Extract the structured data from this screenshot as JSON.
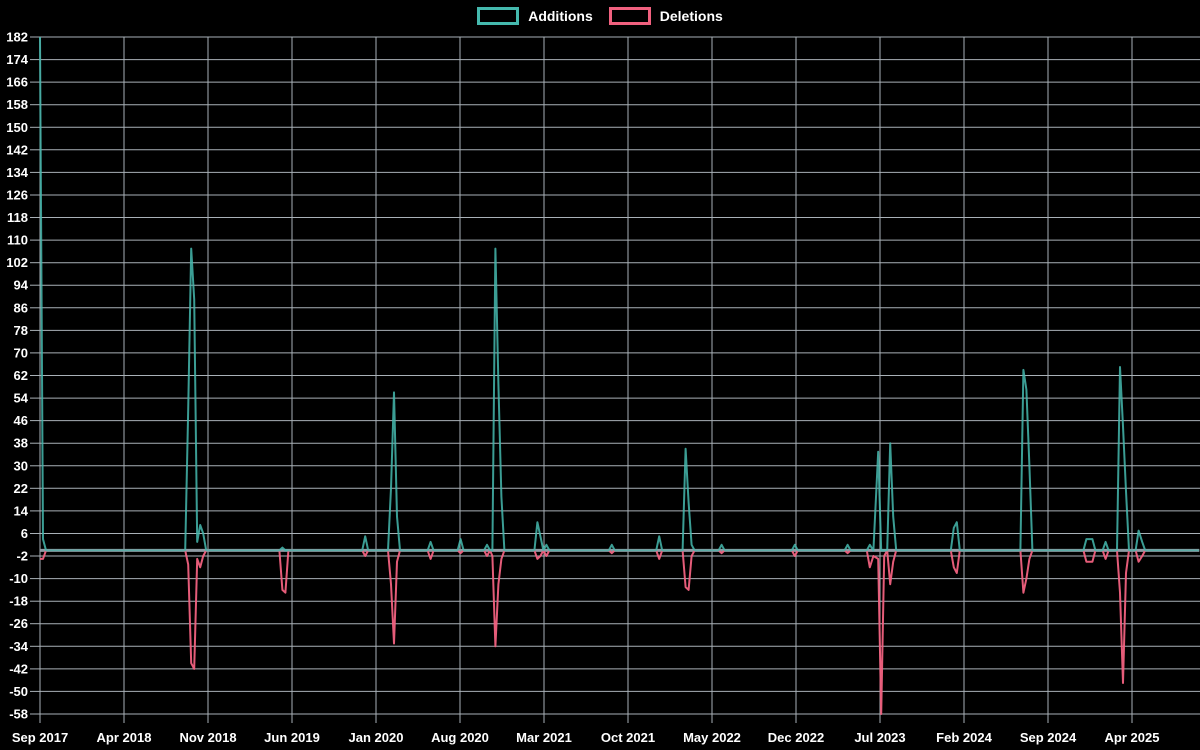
{
  "legend": {
    "items": [
      {
        "label": "Additions",
        "color": "#45b9ae"
      },
      {
        "label": "Deletions",
        "color": "#f1617f"
      }
    ]
  },
  "colors": {
    "background": "#000000",
    "grid": "#a9b1b7",
    "axis_text": "#ffffff",
    "zero_line": "#8e9ba4",
    "additions": "#45b9ae",
    "deletions": "#f1617f"
  },
  "chart_data": {
    "type": "line",
    "title": "",
    "xlabel": "",
    "ylabel": "",
    "grid": true,
    "legend_position": "top-center",
    "series_names": [
      "Additions",
      "Deletions"
    ],
    "y_axis": {
      "min": -58,
      "max": 182,
      "step": 8,
      "ticks": [
        182,
        174,
        166,
        158,
        150,
        142,
        134,
        126,
        118,
        110,
        102,
        94,
        86,
        78,
        70,
        62,
        54,
        46,
        38,
        30,
        22,
        14,
        6,
        -2,
        -10,
        -18,
        -26,
        -34,
        -42,
        -50,
        -58
      ]
    },
    "x_axis": {
      "start_date": "2017-09",
      "unit": "months_since_start",
      "tick_months": [
        0,
        7,
        14,
        21,
        28,
        35,
        42,
        49,
        56,
        63,
        70,
        77,
        84,
        91
      ],
      "tick_labels": [
        "Sep 2017",
        "Apr 2018",
        "Nov 2018",
        "Jun 2019",
        "Jan 2020",
        "Aug 2020",
        "Mar 2021",
        "Oct 2021",
        "May 2022",
        "Dec 2022",
        "Jul 2023",
        "Feb 2024",
        "Sep 2024",
        "Apr 2025"
      ]
    },
    "points_format": [
      "months_since_2017_09",
      "additions",
      "deletions"
    ],
    "points": [
      [
        0,
        182,
        -3
      ],
      [
        0.25,
        4,
        -3
      ],
      [
        0.5,
        0,
        0
      ],
      [
        12.1,
        0,
        0
      ],
      [
        12.35,
        50,
        -5
      ],
      [
        12.6,
        107,
        -40
      ],
      [
        12.85,
        89,
        -42
      ],
      [
        13.1,
        3,
        -3
      ],
      [
        13.35,
        9,
        -6
      ],
      [
        13.6,
        6,
        -2
      ],
      [
        13.85,
        0,
        0
      ],
      [
        19.95,
        0,
        0
      ],
      [
        20.2,
        1,
        -14
      ],
      [
        20.45,
        0,
        -15
      ],
      [
        20.7,
        0,
        0
      ],
      [
        26.85,
        0,
        0
      ],
      [
        27.1,
        5,
        -2
      ],
      [
        27.35,
        0,
        0
      ],
      [
        29.0,
        0,
        0
      ],
      [
        29.25,
        22,
        -12
      ],
      [
        29.5,
        56,
        -33
      ],
      [
        29.75,
        12,
        -4
      ],
      [
        30.0,
        0,
        0
      ],
      [
        32.3,
        0,
        0
      ],
      [
        32.55,
        3,
        -3
      ],
      [
        32.8,
        0,
        0
      ],
      [
        34.8,
        0,
        0
      ],
      [
        35.05,
        4,
        -1
      ],
      [
        35.3,
        0,
        0
      ],
      [
        37.0,
        0,
        0
      ],
      [
        37.25,
        2,
        -2
      ],
      [
        37.5,
        0,
        0
      ],
      [
        37.7,
        0,
        -2
      ],
      [
        37.95,
        107,
        -34
      ],
      [
        38.2,
        59,
        -12
      ],
      [
        38.45,
        19,
        -3
      ],
      [
        38.7,
        0,
        0
      ],
      [
        41.2,
        0,
        0
      ],
      [
        41.45,
        10,
        -3
      ],
      [
        41.7,
        5,
        -2
      ],
      [
        41.95,
        0,
        0
      ],
      [
        42.2,
        2,
        -2
      ],
      [
        42.45,
        0,
        0
      ],
      [
        47.4,
        0,
        0
      ],
      [
        47.65,
        2,
        -1
      ],
      [
        47.9,
        0,
        0
      ],
      [
        51.35,
        0,
        0
      ],
      [
        51.6,
        5,
        -3
      ],
      [
        51.85,
        0,
        0
      ],
      [
        53.55,
        0,
        0
      ],
      [
        53.8,
        36,
        -13
      ],
      [
        54.05,
        17,
        -14
      ],
      [
        54.3,
        2,
        -2
      ],
      [
        54.55,
        0,
        0
      ],
      [
        56.55,
        0,
        0
      ],
      [
        56.8,
        2,
        -1
      ],
      [
        57.05,
        0,
        0
      ],
      [
        62.65,
        0,
        0
      ],
      [
        62.9,
        2,
        -2
      ],
      [
        63.15,
        0,
        0
      ],
      [
        67.05,
        0,
        0
      ],
      [
        67.3,
        2,
        -1
      ],
      [
        67.55,
        0,
        0
      ],
      [
        68.9,
        0,
        0
      ],
      [
        69.15,
        2,
        -6
      ],
      [
        69.45,
        0,
        -2
      ],
      [
        69.85,
        35,
        -3
      ],
      [
        70.1,
        0,
        -58
      ],
      [
        70.35,
        0,
        -2
      ],
      [
        70.6,
        0,
        0
      ],
      [
        70.85,
        38,
        -12
      ],
      [
        71.1,
        12,
        -4
      ],
      [
        71.35,
        0,
        0
      ],
      [
        75.9,
        0,
        0
      ],
      [
        76.15,
        8,
        -6
      ],
      [
        76.4,
        10,
        -8
      ],
      [
        76.65,
        0,
        0
      ],
      [
        81.7,
        0,
        0
      ],
      [
        81.95,
        64,
        -15
      ],
      [
        82.2,
        57,
        -10
      ],
      [
        82.45,
        30,
        -3
      ],
      [
        82.7,
        0,
        0
      ],
      [
        86.95,
        0,
        0
      ],
      [
        87.2,
        4,
        -4
      ],
      [
        87.7,
        4,
        -4
      ],
      [
        87.95,
        0,
        0
      ],
      [
        88.55,
        0,
        0
      ],
      [
        88.8,
        3,
        -3
      ],
      [
        89.05,
        0,
        0
      ],
      [
        89.75,
        0,
        0
      ],
      [
        90.0,
        65,
        -15
      ],
      [
        90.25,
        44,
        -47
      ],
      [
        90.5,
        21,
        -8
      ],
      [
        90.75,
        0,
        0
      ],
      [
        91.3,
        0,
        0
      ],
      [
        91.55,
        7,
        -4
      ],
      [
        91.85,
        3,
        -2
      ],
      [
        92.1,
        0,
        0
      ],
      [
        96.6,
        0,
        0
      ]
    ]
  }
}
